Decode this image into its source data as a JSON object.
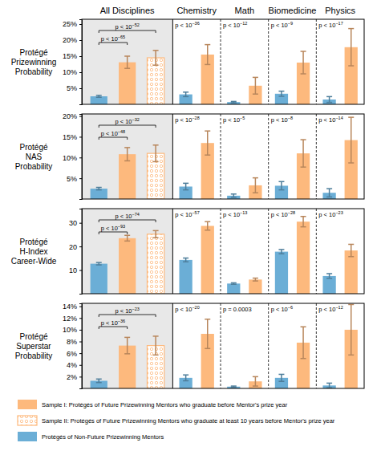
{
  "chart_data": [
    {
      "type": "bar",
      "ylabel": "Protégé\nPrizewinning\nProbability",
      "categories": [
        "All Disciplines",
        "Chemistry",
        "Math",
        "Biomedicine",
        "Physics"
      ],
      "ylim": [
        0,
        26.5
      ],
      "yticks": [
        {
          "value": 5,
          "label": "5%"
        },
        {
          "value": 10,
          "label": "10%"
        },
        {
          "value": 15,
          "label": "15%"
        },
        {
          "value": 20,
          "label": "20%"
        },
        {
          "value": 25,
          "label": "25%"
        }
      ],
      "series": [
        {
          "name": "Protégés of Non-Future Prizewinning Mentors",
          "color": "#6baed6",
          "values": [
            2.5,
            3.1,
            0.7,
            3.3,
            1.5
          ],
          "errors": [
            0.3,
            0.7,
            0.2,
            0.8,
            0.9
          ]
        },
        {
          "name": "Sample I: Protégés of Future Prizewinning Mentors who graduate before Mentor's prize year",
          "color": "#fdb97d",
          "values": [
            13.1,
            15.5,
            5.8,
            13.0,
            17.8
          ],
          "errors": [
            1.9,
            3.1,
            2.6,
            3.5,
            5.8
          ]
        },
        {
          "name": "Sample II: Protégés of Future Prizewinning Mentors who graduate at least 10 years before Mentor's prize year",
          "color": "#fdb97d",
          "marker": "o",
          "values": [
            14.5,
            null,
            null,
            null,
            null
          ],
          "errors": [
            2.3,
            null,
            null,
            null,
            null
          ]
        }
      ],
      "annotations": [
        [
          {
            "text": "p < 10",
            "sup": "−52"
          },
          {
            "text": "p < 10",
            "sup": "−65"
          }
        ],
        [
          {
            "text": "p < 10",
            "sup": "−36"
          }
        ],
        [
          {
            "text": "p < 10",
            "sup": "−12"
          }
        ],
        [
          {
            "text": "p < 10",
            "sup": "−9"
          }
        ],
        [
          {
            "text": "p < 10",
            "sup": "−17"
          }
        ]
      ]
    },
    {
      "type": "bar",
      "ylabel": "Protégé\nNAS\nProbability",
      "categories": [
        null,
        null,
        null,
        null,
        null
      ],
      "ylim": [
        0,
        20.5
      ],
      "yticks": [
        {
          "value": 5,
          "label": "5%"
        },
        {
          "value": 10,
          "label": "10%"
        },
        {
          "value": 15,
          "label": "15%"
        },
        {
          "value": 20,
          "label": "20%"
        }
      ],
      "series": [
        {
          "color": "#6baed6",
          "values": [
            2.5,
            3.0,
            0.8,
            3.2,
            1.5
          ],
          "errors": [
            0.3,
            0.8,
            0.4,
            1.0,
            1.0
          ]
        },
        {
          "color": "#fdb97d",
          "values": [
            10.8,
            13.5,
            3.3,
            11.0,
            14.2
          ],
          "errors": [
            1.6,
            2.9,
            1.8,
            3.3,
            5.5
          ]
        },
        {
          "color": "#fdb97d",
          "marker": "o",
          "values": [
            11.0,
            null,
            null,
            null,
            null
          ],
          "errors": [
            2.0,
            null,
            null,
            null,
            null
          ]
        }
      ],
      "annotations": [
        [
          {
            "text": "p < 10",
            "sup": "−32"
          },
          {
            "text": "p < 10",
            "sup": "−48"
          }
        ],
        [
          {
            "text": "p < 10",
            "sup": "−28"
          }
        ],
        [
          {
            "text": "p < 10",
            "sup": "−5"
          }
        ],
        [
          {
            "text": "p < 10",
            "sup": "−8"
          }
        ],
        [
          {
            "text": "p < 10",
            "sup": "−14"
          }
        ]
      ]
    },
    {
      "type": "bar",
      "ylabel": "Protégé\nH-Index\nCareer-Wide",
      "categories": [
        null,
        null,
        null,
        null,
        null
      ],
      "ylim": [
        0,
        36
      ],
      "yticks": [
        10,
        20,
        30
      ],
      "series": [
        {
          "color": "#6baed6",
          "values": [
            12.7,
            14.3,
            4.3,
            17.8,
            7.5
          ],
          "errors": [
            0.5,
            0.8,
            0.3,
            0.9,
            1.0
          ]
        },
        {
          "color": "#fdb97d",
          "values": [
            23.5,
            28.7,
            6.0,
            30.5,
            18.3
          ],
          "errors": [
            1.2,
            1.8,
            0.6,
            2.2,
            2.6
          ]
        },
        {
          "color": "#fdb97d",
          "marker": "o",
          "values": [
            25.2,
            null,
            null,
            null,
            null
          ],
          "errors": [
            1.5,
            null,
            null,
            null,
            null
          ]
        }
      ],
      "annotations": [
        [
          {
            "text": "p < 10",
            "sup": "−74"
          },
          {
            "text": "p < 10",
            "sup": "−93"
          }
        ],
        [
          {
            "text": "p < 10",
            "sup": "−57"
          }
        ],
        [
          {
            "text": "p < 10",
            "sup": "−13"
          }
        ],
        [
          {
            "text": "p < 10",
            "sup": "−28"
          }
        ],
        [
          {
            "text": "p < 10",
            "sup": "−23"
          }
        ]
      ]
    },
    {
      "type": "bar",
      "ylabel": "Protégé\nSuperstar\nProbability",
      "categories": [
        null,
        null,
        null,
        null,
        null
      ],
      "ylim": [
        0,
        14.5
      ],
      "yticks": [
        {
          "value": 2,
          "label": "2%"
        },
        {
          "value": 4,
          "label": "4%"
        },
        {
          "value": 6,
          "label": "6%"
        },
        {
          "value": 8,
          "label": "8%"
        },
        {
          "value": 10,
          "label": "10%"
        },
        {
          "value": 12,
          "label": "12%"
        },
        {
          "value": 14,
          "label": "14%"
        }
      ],
      "series": [
        {
          "color": "#6baed6",
          "values": [
            1.3,
            1.8,
            0.3,
            1.8,
            0.5
          ],
          "errors": [
            0.3,
            0.5,
            0.1,
            0.6,
            0.4
          ]
        },
        {
          "color": "#fdb97d",
          "values": [
            7.3,
            9.3,
            1.2,
            7.8,
            10.0
          ],
          "errors": [
            1.4,
            2.5,
            0.8,
            2.7,
            4.3
          ]
        },
        {
          "color": "#fdb97d",
          "marker": "o",
          "values": [
            7.3,
            null,
            null,
            null,
            null
          ],
          "errors": [
            1.6,
            null,
            null,
            null,
            null
          ]
        }
      ],
      "annotations": [
        [
          {
            "text": "p < 10",
            "sup": "−23"
          },
          {
            "text": "p < 10",
            "sup": "−36"
          }
        ],
        [
          {
            "text": "p < 10",
            "sup": "−20"
          }
        ],
        [
          {
            "text": "p = 0.0003"
          }
        ],
        [
          {
            "text": "p < 10",
            "sup": "−6"
          }
        ],
        [
          {
            "text": "p < 10",
            "sup": "−12"
          }
        ]
      ]
    }
  ]
}
